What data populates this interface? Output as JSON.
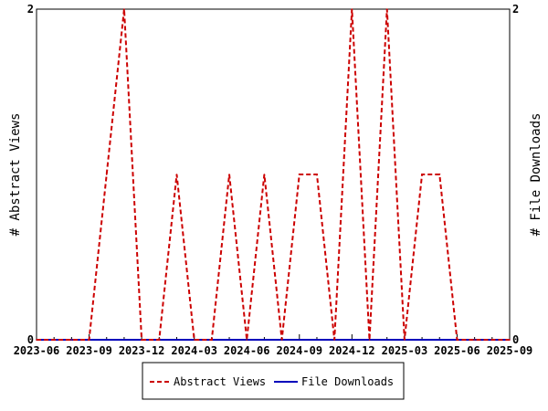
{
  "chart_data": {
    "type": "line",
    "x": [
      "2023-06",
      "2023-07",
      "2023-08",
      "2023-09",
      "2023-10",
      "2023-11",
      "2023-12",
      "2024-01",
      "2024-02",
      "2024-03",
      "2024-04",
      "2024-05",
      "2024-06",
      "2024-07",
      "2024-08",
      "2024-09",
      "2024-10",
      "2024-11",
      "2024-12",
      "2025-01",
      "2025-02",
      "2025-03",
      "2025-04",
      "2025-05",
      "2025-06",
      "2025-07",
      "2025-08",
      "2025-09"
    ],
    "xticks": [
      "2023-06",
      "2023-09",
      "2023-12",
      "2024-03",
      "2024-06",
      "2024-09",
      "2024-12",
      "2025-03",
      "2025-06",
      "2025-09"
    ],
    "series": [
      {
        "name": "Abstract Views",
        "color": "#cc0000",
        "style": "dashed",
        "axis": "left",
        "values": [
          0,
          0,
          0,
          0,
          1,
          2,
          0,
          0,
          1,
          0,
          0,
          1,
          0,
          1,
          0,
          1,
          1,
          0,
          2,
          0,
          2,
          0,
          1,
          1,
          0,
          0,
          0,
          0
        ]
      },
      {
        "name": "File Downloads",
        "color": "#0000bb",
        "style": "solid",
        "axis": "right",
        "values": [
          0,
          0,
          0,
          0,
          0,
          0,
          0,
          0,
          0,
          0,
          0,
          0,
          0,
          0,
          0,
          0,
          0,
          0,
          0,
          0,
          0,
          0,
          0,
          0,
          0,
          0,
          0,
          0
        ]
      }
    ],
    "ylabel": "# Abstract Views",
    "y2label": "# File Downloads",
    "ylim": [
      0,
      2
    ],
    "y2lim": [
      0,
      2
    ],
    "yticks": [
      "0",
      "2"
    ],
    "y2ticks": [
      "0",
      "2"
    ],
    "grid": false,
    "legend": "bottom"
  }
}
